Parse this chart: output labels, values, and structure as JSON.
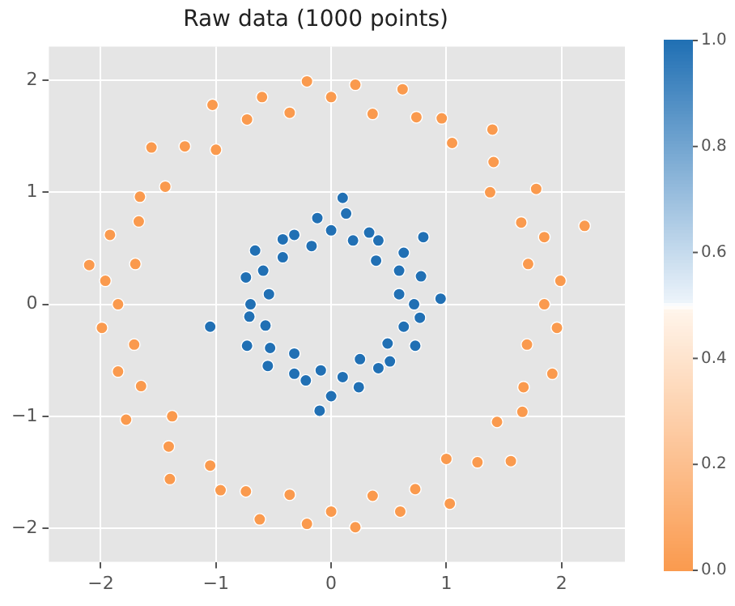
{
  "chart_data": {
    "type": "scatter",
    "title": "Raw data (1000 points)",
    "xlim": [
      -2.45,
      2.55
    ],
    "ylim": [
      -2.3,
      2.3
    ],
    "xticks": [
      {
        "value": -2,
        "label": "−2"
      },
      {
        "value": -1,
        "label": "−1"
      },
      0,
      1,
      2
    ],
    "yticks": [
      {
        "value": -2,
        "label": "−2"
      },
      {
        "value": -1,
        "label": "−1"
      },
      0,
      1,
      2
    ],
    "clim": [
      0,
      1
    ],
    "cticks": [
      {
        "value": 0,
        "label": "0.0"
      },
      {
        "value": 0.2,
        "label": "0.2"
      },
      {
        "value": 0.4,
        "label": "0.4"
      },
      {
        "value": 0.6,
        "label": "0.6"
      },
      {
        "value": 0.8,
        "label": "0.8"
      },
      {
        "value": 1,
        "label": "1.0"
      }
    ],
    "grid": true,
    "marker": "circle",
    "series": [
      {
        "x": [
          1.85,
          1.99,
          1.71,
          1.85,
          1.65,
          1.78,
          1.38,
          1.41,
          1.4,
          1.05,
          0.96,
          0.74,
          0.62,
          0.36,
          0.21,
          0,
          -0.21,
          -0.36,
          -0.6,
          -0.73,
          -1.03,
          -1.0,
          -1.27,
          -1.56,
          -1.44,
          -1.66,
          -1.67,
          -1.92,
          -1.7,
          -1.96,
          -1.85,
          -1.99,
          -1.71,
          -1.85,
          -1.65,
          -1.78,
          -1.38,
          -1.41,
          -1.4,
          -1.05,
          -0.96,
          -0.74,
          -0.62,
          -0.36,
          -0.21,
          0,
          0.21,
          0.36,
          0.6,
          0.73,
          1.03,
          1.0,
          1.27,
          1.56,
          1.44,
          1.66,
          1.67,
          1.92,
          1.7,
          1.96,
          -2.1,
          2.2
        ],
        "values": [
          0,
          0.21,
          0.36,
          0.6,
          0.73,
          1.03,
          1.0,
          1.27,
          1.56,
          1.44,
          1.66,
          1.67,
          1.92,
          1.7,
          1.96,
          1.85,
          1.99,
          1.71,
          1.85,
          1.65,
          1.78,
          1.38,
          1.41,
          1.4,
          1.05,
          0.96,
          0.74,
          0.62,
          0.36,
          0.21,
          0,
          -0.21,
          -0.36,
          -0.6,
          -0.73,
          -1.03,
          -1.0,
          -1.27,
          -1.56,
          -1.44,
          -1.66,
          -1.67,
          -1.92,
          -1.7,
          -1.96,
          -1.85,
          -1.99,
          -1.71,
          -1.85,
          -1.65,
          -1.78,
          -1.38,
          -1.41,
          -1.4,
          -1.05,
          -0.96,
          -0.74,
          -0.62,
          -0.36,
          -0.21,
          0.35,
          0.7
        ],
        "cvalues": [
          0,
          0,
          0,
          0,
          0,
          0,
          0,
          0,
          0,
          0,
          0,
          0,
          0,
          0,
          0,
          0,
          0,
          0,
          0,
          0,
          0,
          0,
          0,
          0,
          0,
          0,
          0,
          0,
          0,
          0,
          0,
          0,
          0,
          0,
          0,
          0,
          0,
          0,
          0,
          0,
          0,
          0,
          0,
          0,
          0,
          0,
          0,
          0,
          0,
          0,
          0,
          0,
          0,
          0,
          0,
          0,
          0,
          0,
          0,
          0,
          0,
          0
        ]
      },
      {
        "x": [
          0.72,
          0.59,
          0.78,
          0.59,
          0.63,
          0.39,
          0.41,
          0.33,
          0.19,
          0.13,
          0,
          -0.12,
          -0.17,
          -0.32,
          -0.42,
          -0.42,
          -0.66,
          -0.59,
          -0.74,
          -0.54,
          -0.7,
          -0.71,
          -0.57,
          -0.73,
          -0.53,
          -0.55,
          -0.32,
          -0.32,
          -0.22,
          -0.09,
          0,
          0.1,
          0.24,
          0.25,
          0.41,
          0.51,
          0.49,
          0.73,
          0.63,
          0.77,
          -1.05,
          0.1,
          -0.1,
          0.95,
          0.8
        ],
        "values": [
          0,
          0.09,
          0.25,
          0.3,
          0.46,
          0.39,
          0.57,
          0.64,
          0.57,
          0.81,
          0.66,
          0.77,
          0.52,
          0.62,
          0.58,
          0.42,
          0.48,
          0.3,
          0.24,
          0.09,
          0,
          -0.11,
          -0.19,
          -0.37,
          -0.39,
          -0.55,
          -0.44,
          -0.62,
          -0.68,
          -0.59,
          -0.82,
          -0.65,
          -0.74,
          -0.49,
          -0.57,
          -0.51,
          -0.35,
          -0.37,
          -0.2,
          -0.12,
          -0.2,
          0.95,
          -0.95,
          0.05,
          0.6
        ],
        "cvalues": [
          1,
          1,
          1,
          1,
          1,
          1,
          1,
          1,
          1,
          1,
          1,
          1,
          1,
          1,
          1,
          1,
          1,
          1,
          1,
          1,
          1,
          1,
          1,
          1,
          1,
          1,
          1,
          1,
          1,
          1,
          1,
          1,
          1,
          1,
          1,
          1,
          1,
          1,
          1,
          1,
          1,
          1,
          1,
          1,
          1
        ]
      }
    ]
  }
}
